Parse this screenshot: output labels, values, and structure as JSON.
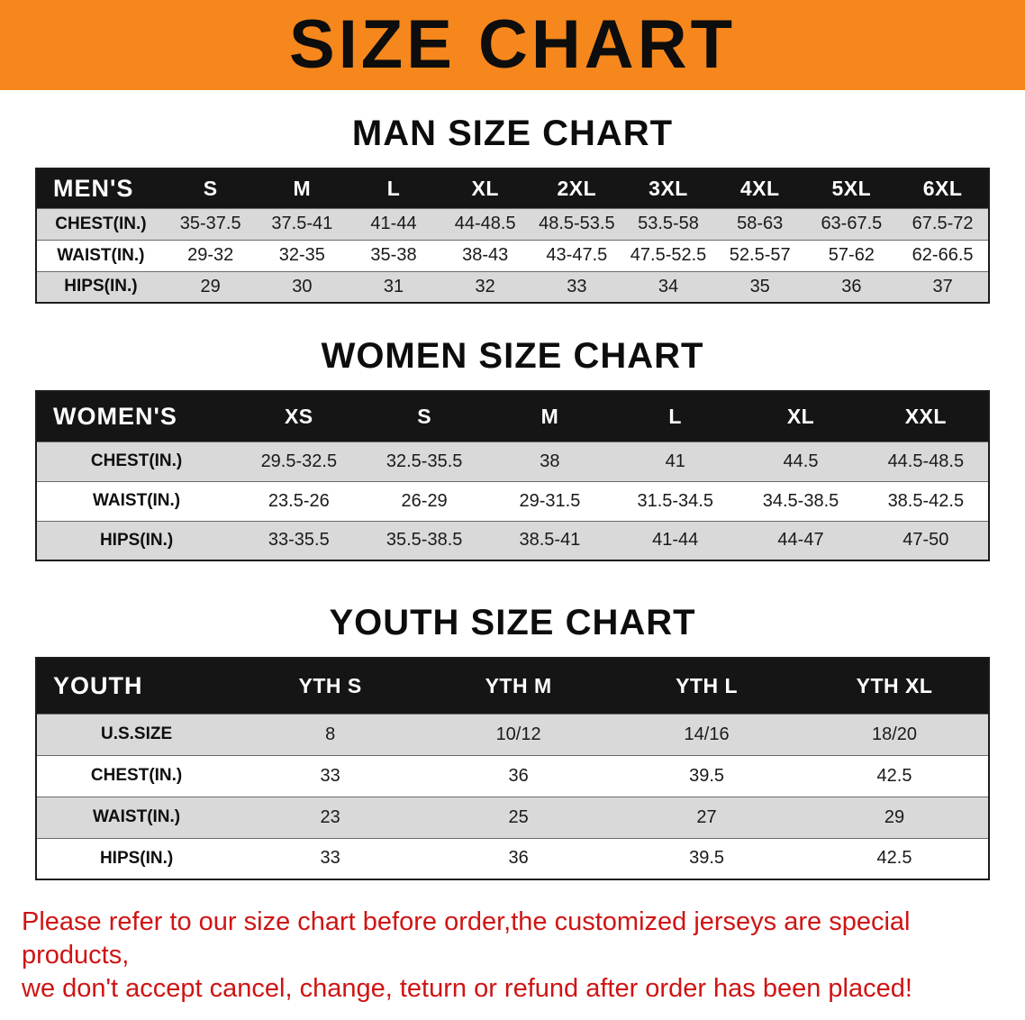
{
  "banner": {
    "title": "SIZE CHART"
  },
  "colors": {
    "banner_orange": "#f6871d",
    "table_header_black": "#151515",
    "row_stripe_gray": "#d9d9d9",
    "disclaimer_red": "#cf1414"
  },
  "sections": [
    {
      "heading": "MAN SIZE CHART",
      "table": {
        "header": [
          "MEN'S",
          "S",
          "M",
          "L",
          "XL",
          "2XL",
          "3XL",
          "4XL",
          "5XL",
          "6XL"
        ],
        "rows": [
          [
            "CHEST(IN.)",
            "35-37.5",
            "37.5-41",
            "41-44",
            "44-48.5",
            "48.5-53.5",
            "53.5-58",
            "58-63",
            "63-67.5",
            "67.5-72"
          ],
          [
            "WAIST(IN.)",
            "29-32",
            "32-35",
            "35-38",
            "38-43",
            "43-47.5",
            "47.5-52.5",
            "52.5-57",
            "57-62",
            "62-66.5"
          ],
          [
            "HIPS(IN.)",
            "29",
            "30",
            "31",
            "32",
            "33",
            "34",
            "35",
            "36",
            "37"
          ]
        ]
      }
    },
    {
      "heading": "WOMEN SIZE CHART",
      "table": {
        "header": [
          "WOMEN'S",
          "XS",
          "S",
          "M",
          "L",
          "XL",
          "XXL"
        ],
        "rows": [
          [
            "CHEST(IN.)",
            "29.5-32.5",
            "32.5-35.5",
            "38",
            "41",
            "44.5",
            "44.5-48.5"
          ],
          [
            "WAIST(IN.)",
            "23.5-26",
            "26-29",
            "29-31.5",
            "31.5-34.5",
            "34.5-38.5",
            "38.5-42.5"
          ],
          [
            "HIPS(IN.)",
            "33-35.5",
            "35.5-38.5",
            "38.5-41",
            "41-44",
            "44-47",
            "47-50"
          ]
        ]
      }
    },
    {
      "heading": "YOUTH SIZE CHART",
      "table": {
        "header": [
          "YOUTH",
          "YTH S",
          "YTH M",
          "YTH L",
          "YTH XL"
        ],
        "rows": [
          [
            "U.S.SIZE",
            "8",
            "10/12",
            "14/16",
            "18/20"
          ],
          [
            "CHEST(IN.)",
            "33",
            "36",
            "39.5",
            "42.5"
          ],
          [
            "WAIST(IN.)",
            "23",
            "25",
            "27",
            "29"
          ],
          [
            "HIPS(IN.)",
            "33",
            "36",
            "39.5",
            "42.5"
          ]
        ]
      }
    }
  ],
  "disclaimer": {
    "line1": "Please refer to our size chart before order,the customized jerseys are special products,",
    "line2": "we don't accept cancel, change, teturn or refund after order has been placed!"
  }
}
